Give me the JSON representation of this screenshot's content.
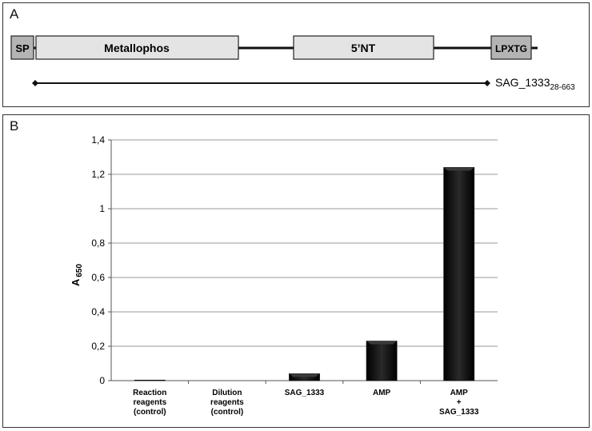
{
  "panel_a": {
    "letter": "A",
    "domains": [
      {
        "label": "SP",
        "fill": "#b4b4b4"
      },
      {
        "label": "Metallophos",
        "fill": "#e4e4e4"
      },
      {
        "label": "5’NT",
        "fill": "#e4e4e4"
      },
      {
        "label": "LPXTG",
        "fill": "#b4b4b4"
      }
    ],
    "construct": {
      "name": "SAG_1333",
      "range": "28-663"
    }
  },
  "panel_b": {
    "letter": "B"
  },
  "chart_data": {
    "type": "bar",
    "categories": [
      [
        "Reaction",
        "reagents",
        "(control)"
      ],
      [
        "Dilution",
        "reagents",
        "(control)"
      ],
      [
        "SAG_1333"
      ],
      [
        "AMP"
      ],
      [
        "AMP",
        "+",
        "SAG_1333"
      ]
    ],
    "values": [
      0.003,
      0.0,
      0.04,
      0.23,
      1.24
    ],
    "ylabel": "A",
    "ylabel_sub": "650",
    "ylim": [
      0,
      1.4
    ],
    "yticks": [
      0,
      0.2,
      0.4,
      0.6,
      0.8,
      1,
      1.2,
      1.4
    ],
    "ytick_labels": [
      "0",
      "0,2",
      "0,4",
      "0,6",
      "0,8",
      "1",
      "1,2",
      "1,4"
    ],
    "grid": true,
    "bar_color": "#111111"
  }
}
